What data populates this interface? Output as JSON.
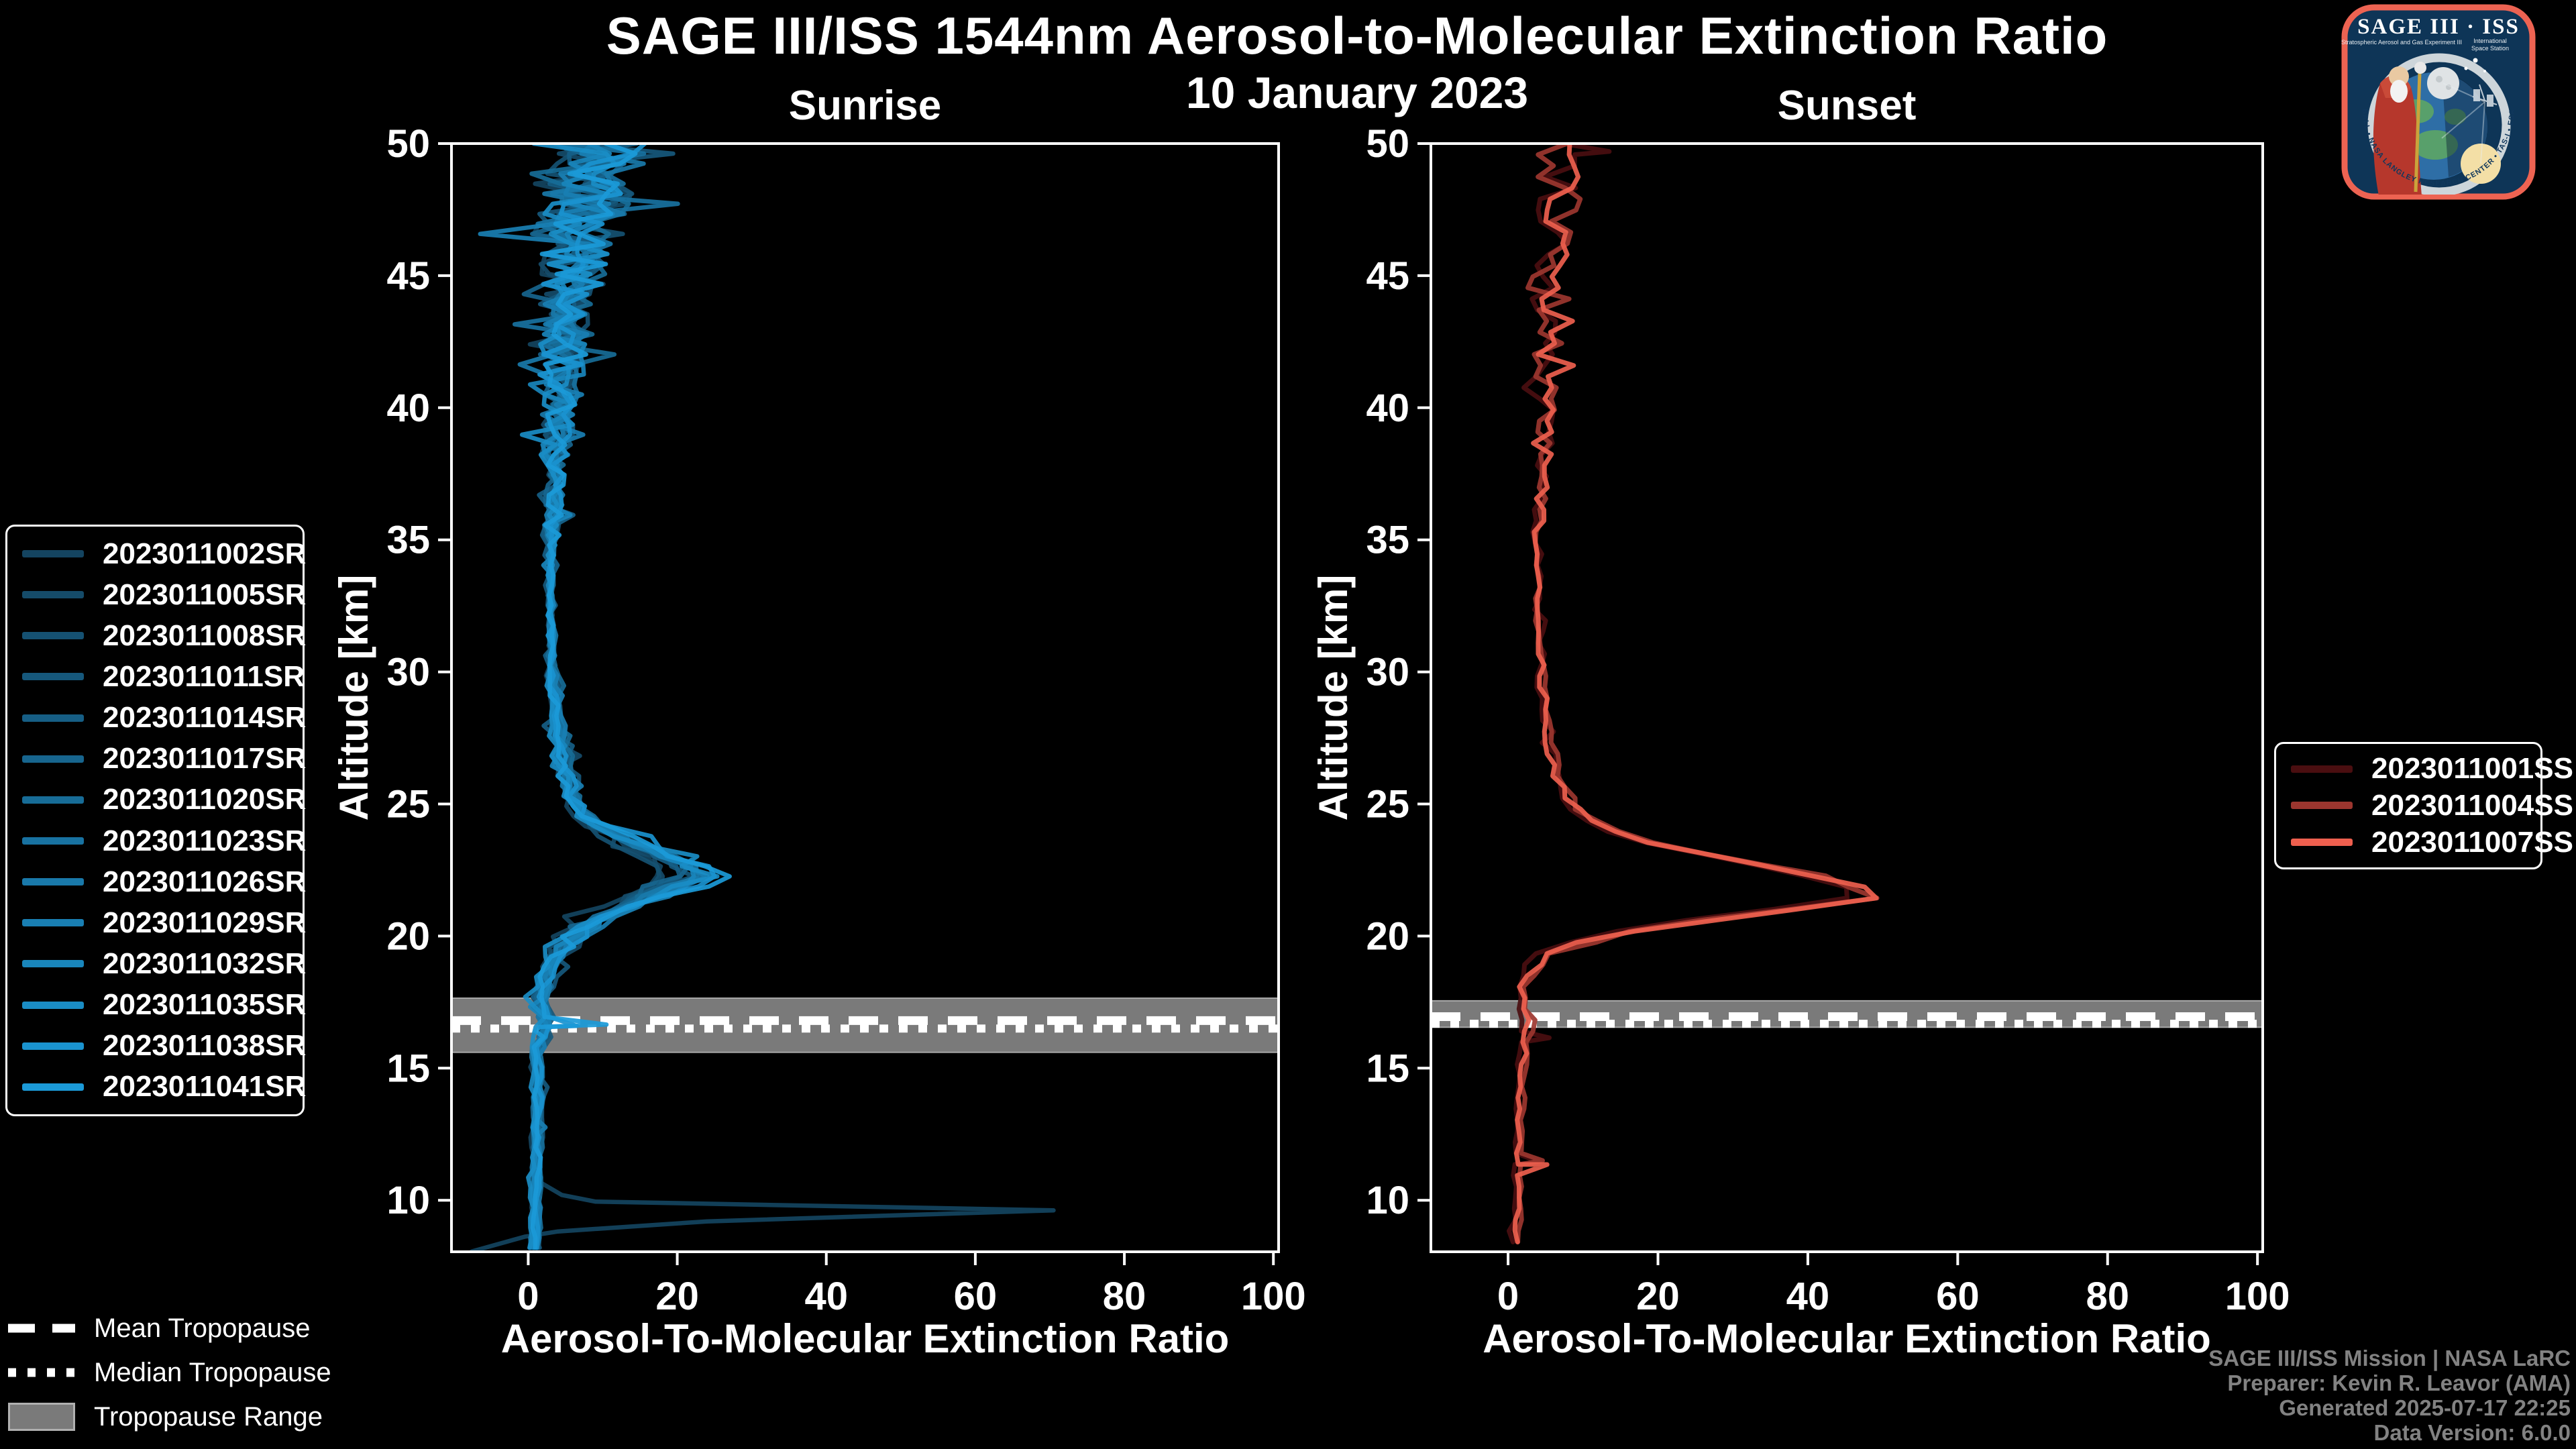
{
  "title": "SAGE III/ISS 1544nm Aerosol-to-Molecular Extinction Ratio",
  "subtitle": "10 January 2023",
  "credits": [
    "SAGE III/ISS Mission | NASA LaRC",
    "Preparer: Kevin R. Leavor (AMA)",
    "Generated 2025-07-17 22:25",
    "Data Version: 6.0.0"
  ],
  "tropopause_legend": {
    "mean_label": "Mean Tropopause",
    "median_label": "Median Tropopause",
    "range_label": "Tropopause Range"
  },
  "logo": {
    "title": "SAGE III · ISS",
    "subtitle_left": "Stratospheric Aerosol and Gas Experiment III",
    "iss_line1": "International",
    "iss_line2": "Space Station",
    "ring_text": "BALL • NASA LANGLEY RESEARCH CENTER • TAS-I • ESA"
  },
  "colors": {
    "background": "#000000",
    "frame": "#ffffff",
    "tropopause_band": "#7a7a7a",
    "tropopause_band_edge": "#a9a9a9",
    "credits_text": "#828282",
    "sunrise_accent": "#1b9ad8",
    "sunset_accent": "#ee5f4e"
  },
  "chart_data": [
    {
      "type": "line",
      "title": "Sunrise",
      "xlabel": "Aerosol-To-Molecular Extinction Ratio",
      "ylabel": "Altitude [km]",
      "xlim": [
        -10.3,
        100.7
      ],
      "ylim": [
        8.05,
        50
      ],
      "xticks": [
        0,
        20,
        40,
        60,
        80,
        100
      ],
      "yticks": [
        10,
        15,
        20,
        25,
        30,
        35,
        40,
        45,
        50
      ],
      "grid": false,
      "legend_position": "left-outside",
      "tropopause": {
        "range": [
          15.6,
          17.65
        ],
        "mean": 16.8,
        "median": 16.5
      },
      "sample_step": 0.38,
      "clamp_min": -8.5,
      "peak_region": [
        18.5,
        22.2,
        25.8
      ],
      "base_profile": [
        [
          8.2,
          1.0
        ],
        [
          10,
          1.0
        ],
        [
          12,
          1.2
        ],
        [
          14,
          1.3
        ],
        [
          15.5,
          1.2
        ],
        [
          16.2,
          1.8
        ],
        [
          16.8,
          2.4
        ],
        [
          17.4,
          1.8
        ],
        [
          18.2,
          2.2
        ],
        [
          19,
          3.2
        ],
        [
          19.6,
          4.5
        ],
        [
          20.2,
          7
        ],
        [
          20.8,
          11
        ],
        [
          21.4,
          16
        ],
        [
          21.9,
          20.5
        ],
        [
          22.3,
          23.5
        ],
        [
          22.7,
          21.5
        ],
        [
          23.1,
          18
        ],
        [
          23.5,
          14.5
        ],
        [
          24,
          10.5
        ],
        [
          24.5,
          7.8
        ],
        [
          25,
          6.2
        ],
        [
          25.6,
          5.4
        ],
        [
          26.2,
          5.0
        ],
        [
          27,
          4.6
        ],
        [
          28,
          4.0
        ],
        [
          29,
          3.6
        ],
        [
          30,
          3.3
        ],
        [
          31,
          3.1
        ],
        [
          32,
          3.0
        ],
        [
          33,
          3.0
        ],
        [
          34,
          3.0
        ],
        [
          35,
          3.1
        ],
        [
          36,
          3.3
        ],
        [
          37,
          3.5
        ],
        [
          38,
          3.7
        ],
        [
          39,
          3.9
        ],
        [
          40,
          4.1
        ],
        [
          41,
          4.4
        ],
        [
          42,
          4.7
        ],
        [
          43,
          5.0
        ],
        [
          44,
          5.4
        ],
        [
          45,
          5.8
        ],
        [
          46,
          6.4
        ],
        [
          47,
          7.2
        ],
        [
          48,
          8.2
        ],
        [
          49,
          9.2
        ],
        [
          50,
          10
        ]
      ],
      "noise_bands": [
        [
          8,
          15.5,
          0.35
        ],
        [
          15.5,
          17.5,
          0.7
        ],
        [
          17.5,
          19.5,
          0.9
        ],
        [
          19.5,
          24,
          1.8
        ],
        [
          24,
          28,
          1.0
        ],
        [
          28,
          35,
          0.45
        ],
        [
          35,
          38,
          1.3
        ],
        [
          38,
          41,
          2.2
        ],
        [
          41,
          44,
          3.2
        ],
        [
          44,
          46.5,
          4.5
        ],
        [
          46.5,
          50.1,
          6.5
        ]
      ],
      "series": [
        {
          "name": "2023011002SR",
          "color": "#144460",
          "peak_scale": 0.78,
          "seed": 101,
          "tail_cut": 10.5,
          "tail": [
            [
              4.5,
              10.2
            ],
            [
              9,
              9.95
            ],
            [
              70.5,
              9.62
            ],
            [
              24,
              9.2
            ],
            [
              4,
              8.82
            ],
            [
              -0.5,
              8.62
            ],
            [
              -7.6,
              8.06
            ]
          ]
        },
        {
          "name": "2023011005SR",
          "color": "#154b69",
          "peak_scale": 0.81,
          "seed": 137
        },
        {
          "name": "2023011008SR",
          "color": "#155172",
          "peak_scale": 0.83,
          "seed": 173
        },
        {
          "name": "2023011011SR",
          "color": "#16587c",
          "peak_scale": 0.86,
          "seed": 209
        },
        {
          "name": "2023011014SR",
          "color": "#165e85",
          "peak_scale": 0.88,
          "seed": 245
        },
        {
          "name": "2023011017SR",
          "color": "#17658e",
          "peak_scale": 0.91,
          "seed": 281
        },
        {
          "name": "2023011020SR",
          "color": "#176c97",
          "peak_scale": 0.93,
          "seed": 317
        },
        {
          "name": "2023011023SR",
          "color": "#1872a1",
          "peak_scale": 0.96,
          "seed": 353
        },
        {
          "name": "2023011026SR",
          "color": "#1979aa",
          "peak_scale": 0.98,
          "seed": 389
        },
        {
          "name": "2023011029SR",
          "color": "#197fb3",
          "peak_scale": 1.01,
          "seed": 425
        },
        {
          "name": "2023011032SR",
          "color": "#1986bc",
          "peak_scale": 1.03,
          "seed": 461
        },
        {
          "name": "2023011035SR",
          "color": "#1a8dc5",
          "peak_scale": 1.06,
          "seed": 497
        },
        {
          "name": "2023011038SR",
          "color": "#1a93cf",
          "peak_scale": 1.09,
          "seed": 533,
          "extras": [
            [
              16.6,
              6.5
            ]
          ]
        },
        {
          "name": "2023011041SR",
          "color": "#1b9ad8",
          "peak_scale": 1.13,
          "seed": 569,
          "extras": [
            [
              16.65,
              10.5
            ],
            [
              16.4,
              1.0
            ]
          ]
        }
      ]
    },
    {
      "type": "line",
      "title": "Sunset",
      "xlabel": "Aerosol-To-Molecular Extinction Ratio",
      "ylabel": "Altitude [km]",
      "xlim": [
        -10.3,
        100.7
      ],
      "ylim": [
        8.05,
        50
      ],
      "xticks": [
        0,
        20,
        40,
        60,
        80,
        100
      ],
      "yticks": [
        10,
        15,
        20,
        25,
        30,
        35,
        40,
        45,
        50
      ],
      "grid": false,
      "legend_position": "right-outside",
      "tropopause": {
        "range": [
          16.55,
          17.55
        ],
        "mean": 16.95,
        "median": 16.68
      },
      "sample_step": 0.42,
      "clamp_min": -3.5,
      "peak_region": [
        18.2,
        21.6,
        25.0
      ],
      "base_profile": [
        [
          8.2,
          1.3
        ],
        [
          9,
          1.4
        ],
        [
          10,
          1.5
        ],
        [
          11,
          1.6
        ],
        [
          12,
          1.7
        ],
        [
          13,
          1.6
        ],
        [
          14,
          1.8
        ],
        [
          15,
          2.0
        ],
        [
          16,
          2.3
        ],
        [
          16.6,
          3.0
        ],
        [
          17.2,
          2.2
        ],
        [
          18,
          2.4
        ],
        [
          18.7,
          3.2
        ],
        [
          19.3,
          5.5
        ],
        [
          20,
          13
        ],
        [
          20.5,
          24
        ],
        [
          21,
          38
        ],
        [
          21.4,
          48
        ],
        [
          21.7,
          51
        ],
        [
          22,
          47
        ],
        [
          22.5,
          38
        ],
        [
          23,
          28
        ],
        [
          23.5,
          20
        ],
        [
          24,
          14
        ],
        [
          24.5,
          10.5
        ],
        [
          25,
          8.5
        ],
        [
          25.5,
          7.4
        ],
        [
          26,
          6.8
        ],
        [
          27,
          6.0
        ],
        [
          28,
          5.4
        ],
        [
          29,
          5.0
        ],
        [
          30,
          4.6
        ],
        [
          31,
          4.3
        ],
        [
          32,
          4.1
        ],
        [
          33,
          4.0
        ],
        [
          34,
          4.0
        ],
        [
          35,
          4.1
        ],
        [
          36,
          4.2
        ],
        [
          37,
          4.4
        ],
        [
          38,
          4.5
        ],
        [
          39,
          4.7
        ],
        [
          40,
          4.9
        ],
        [
          41,
          5.1
        ],
        [
          42,
          5.3
        ],
        [
          43,
          5.5
        ],
        [
          44,
          5.7
        ],
        [
          45,
          5.9
        ],
        [
          46,
          6.1
        ],
        [
          47,
          6.3
        ],
        [
          48,
          6.5
        ],
        [
          49,
          6.7
        ],
        [
          50,
          6.8
        ]
      ],
      "noise_bands": [
        [
          8,
          16,
          0.3
        ],
        [
          16,
          18,
          0.5
        ],
        [
          18,
          19.5,
          0.8
        ],
        [
          19.5,
          23.5,
          1.3
        ],
        [
          23.5,
          28,
          0.7
        ],
        [
          28,
          35,
          0.5
        ],
        [
          35,
          38,
          0.9
        ],
        [
          38,
          41,
          1.4
        ],
        [
          41,
          44,
          1.9
        ],
        [
          44,
          47,
          2.6
        ],
        [
          47,
          50.1,
          3.2
        ]
      ],
      "series": [
        {
          "name": "2023011001SS",
          "color": "#4a0e10",
          "peak_scale": 0.94,
          "seed": 701,
          "extras": [
            [
              49.7,
              13.5
            ],
            [
              16.15,
              5.5
            ],
            [
              11.45,
              4.2
            ]
          ]
        },
        {
          "name": "2023011004SS",
          "color": "#9c362f",
          "peak_scale": 0.97,
          "seed": 737,
          "extras": [
            [
              11.5,
              4.6
            ]
          ]
        },
        {
          "name": "2023011007SS",
          "color": "#ee5f4e",
          "peak_scale": 1.0,
          "seed": 773,
          "extras": [
            [
              11.35,
              5.2
            ]
          ]
        }
      ]
    }
  ]
}
